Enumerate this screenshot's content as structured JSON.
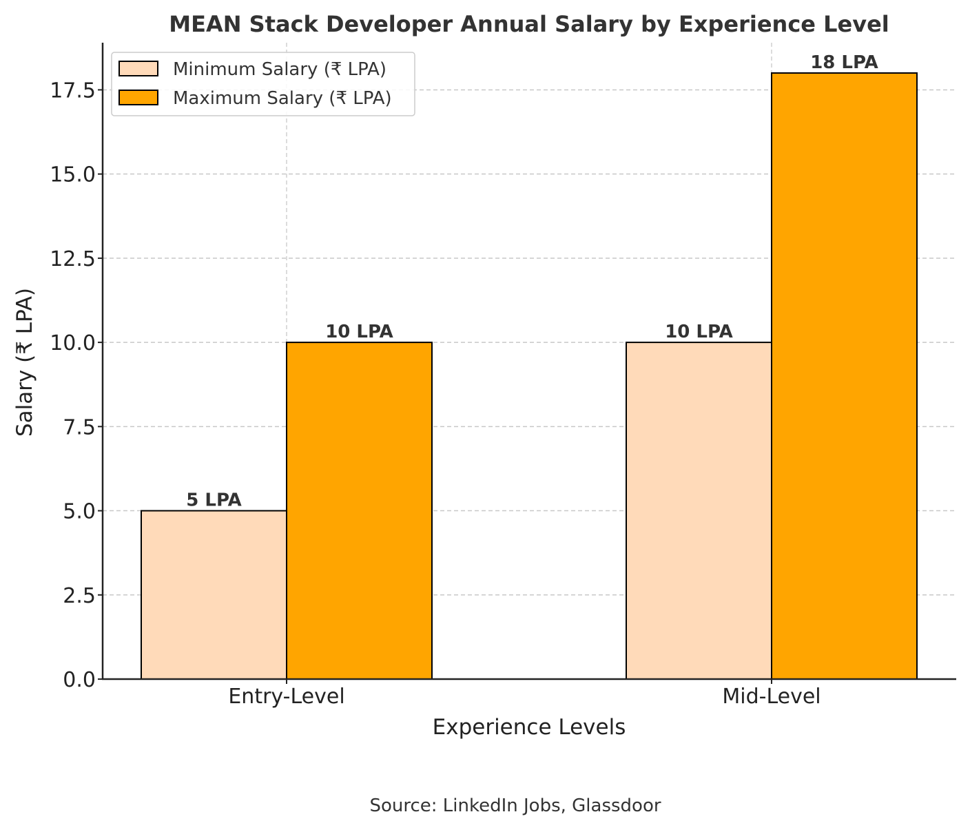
{
  "chart_data": {
    "type": "bar",
    "title": "MEAN Stack Developer Annual Salary by Experience Level",
    "xlabel": "Experience Levels",
    "ylabel": "Salary (₹ LPA)",
    "categories": [
      "Entry-Level",
      "Mid-Level"
    ],
    "series": [
      {
        "name": "Minimum Salary (₹ LPA)",
        "values": [
          5,
          10
        ],
        "labels": [
          "5 LPA",
          "10 LPA"
        ],
        "color": "#FFDAB9"
      },
      {
        "name": "Maximum Salary (₹ LPA)",
        "values": [
          10,
          18
        ],
        "labels": [
          "10 LPA",
          "18 LPA"
        ],
        "color": "#FFA500"
      }
    ],
    "ylim": [
      0,
      18.9
    ],
    "yticks": [
      0,
      2.5,
      5,
      7.5,
      10,
      12.5,
      15,
      17.5
    ],
    "ytick_labels": [
      "0.0",
      "2.5",
      "5.0",
      "7.5",
      "10.0",
      "12.5",
      "15.0",
      "17.5"
    ],
    "grid": true,
    "legend_position": "top-left",
    "source": "Source: LinkedIn Jobs, Glassdoor"
  }
}
